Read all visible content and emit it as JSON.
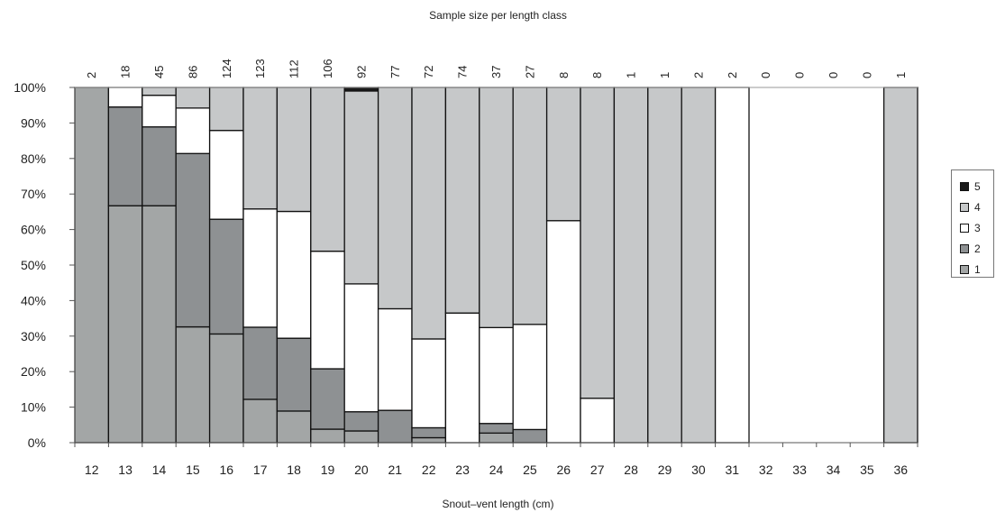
{
  "chart_data": {
    "type": "bar",
    "stacked": "percent",
    "title": "Sample size per length class",
    "xlabel": "Snout–vent length (cm)",
    "ylabel": "",
    "ylim": [
      0,
      100
    ],
    "yticks": [
      "0%",
      "10%",
      "20%",
      "30%",
      "40%",
      "50%",
      "60%",
      "70%",
      "80%",
      "90%",
      "100%"
    ],
    "categories": [
      "12",
      "13",
      "14",
      "15",
      "16",
      "17",
      "18",
      "19",
      "20",
      "21",
      "22",
      "23",
      "24",
      "25",
      "26",
      "27",
      "28",
      "29",
      "30",
      "31",
      "32",
      "33",
      "34",
      "35",
      "36"
    ],
    "sample_sizes": [
      "2",
      "18",
      "45",
      "86",
      "124",
      "123",
      "112",
      "106",
      "92",
      "77",
      "72",
      "74",
      "37",
      "27",
      "8",
      "8",
      "1",
      "1",
      "2",
      "2",
      "0",
      "0",
      "0",
      "0",
      "1"
    ],
    "series": [
      {
        "name": "1",
        "color": "#a3a6a6",
        "values": [
          100,
          66.7,
          66.7,
          32.6,
          30.6,
          12.2,
          8.9,
          3.8,
          3.3,
          0,
          1.4,
          0,
          2.7,
          0,
          0,
          0,
          0,
          0,
          0,
          0,
          0,
          0,
          0,
          0,
          0
        ]
      },
      {
        "name": "2",
        "color": "#8e9193",
        "values": [
          0,
          27.8,
          22.2,
          48.8,
          32.3,
          20.3,
          20.5,
          17.0,
          5.4,
          9.1,
          2.8,
          0,
          2.7,
          3.7,
          0,
          0,
          0,
          0,
          0,
          0,
          0,
          0,
          0,
          0,
          0
        ]
      },
      {
        "name": "3",
        "color": "#ffffff",
        "values": [
          0,
          5.5,
          8.9,
          12.8,
          25.0,
          33.3,
          35.7,
          33.1,
          36.0,
          28.6,
          25.0,
          36.5,
          27.0,
          29.6,
          62.5,
          12.5,
          0,
          0,
          0,
          100,
          0,
          0,
          0,
          0,
          0
        ]
      },
      {
        "name": "4",
        "color": "#c6c8c9",
        "values": [
          0,
          0,
          2.2,
          5.8,
          12.1,
          34.2,
          34.9,
          46.1,
          54.3,
          62.3,
          70.8,
          63.5,
          67.6,
          66.7,
          37.5,
          87.5,
          100,
          100,
          100,
          0,
          0,
          0,
          0,
          0,
          100
        ]
      },
      {
        "name": "5",
        "color": "#1a1a1a",
        "values": [
          0,
          0,
          0,
          0,
          0,
          0,
          0,
          0,
          1.0,
          0,
          0,
          0,
          0,
          0,
          0,
          0,
          0,
          0,
          0,
          0,
          0,
          0,
          0,
          0,
          0
        ]
      }
    ],
    "legend": "right",
    "grid": false
  }
}
